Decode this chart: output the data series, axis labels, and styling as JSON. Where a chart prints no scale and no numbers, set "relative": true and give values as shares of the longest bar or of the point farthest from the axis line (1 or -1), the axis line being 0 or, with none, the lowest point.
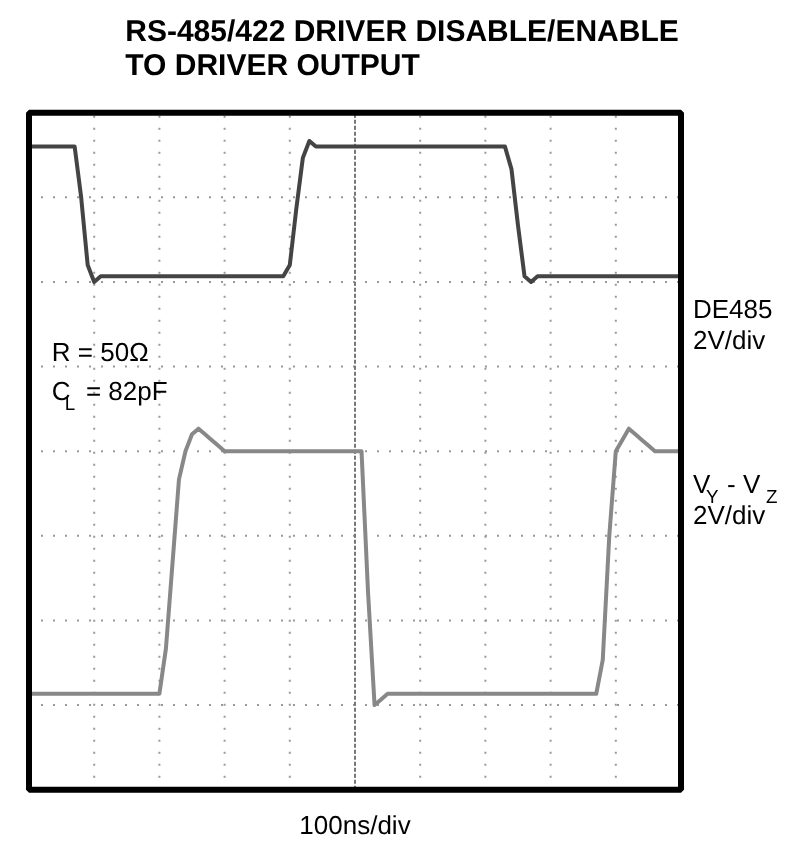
{
  "chart_data": {
    "type": "line",
    "title": "RS-485/422 DRIVER DISABLE/ENABLE\nTO DRIVER OUTPUT",
    "xlabel": "100ns/div",
    "relative": true,
    "grid": true,
    "tick_labels": false,
    "categories": [
      null,
      null,
      null,
      null,
      null,
      null,
      null,
      null,
      null,
      null,
      null,
      null,
      null,
      null,
      null,
      null,
      null,
      null,
      null,
      null,
      null,
      null,
      null,
      null,
      null,
      null,
      null,
      null,
      null,
      null,
      null,
      null,
      null,
      null,
      null,
      null,
      null,
      null,
      null,
      null,
      null,
      null,
      null,
      null,
      null,
      null,
      null,
      null,
      null,
      null,
      null,
      null,
      null,
      null,
      null,
      null,
      null,
      null,
      null,
      null,
      null,
      null,
      null,
      null,
      null,
      null,
      null,
      null,
      null,
      null,
      null,
      null,
      null,
      null,
      null,
      null,
      null,
      null,
      null,
      null,
      null,
      null,
      null,
      null,
      null,
      null,
      null,
      null,
      null,
      null,
      null,
      null,
      null,
      null,
      null,
      null,
      null,
      null,
      null,
      null,
      null
    ],
    "annotations": [
      "R = 50Ω",
      "C$_{L}$ = 82pF"
    ],
    "series": [
      {
        "name": "DE485\n2V/div",
        "color": "#444444",
        "values": [
          0.99,
          0.99,
          0.99,
          0.99,
          0.99,
          0.99,
          0.99,
          0.99,
          0.9,
          0.78,
          0.75,
          0.76,
          0.76,
          0.76,
          0.76,
          0.76,
          0.76,
          0.76,
          0.76,
          0.76,
          0.76,
          0.76,
          0.76,
          0.76,
          0.76,
          0.76,
          0.76,
          0.76,
          0.76,
          0.76,
          0.76,
          0.76,
          0.76,
          0.76,
          0.76,
          0.76,
          0.76,
          0.76,
          0.76,
          0.76,
          0.78,
          0.88,
          0.97,
          1,
          0.99,
          0.99,
          0.99,
          0.99,
          0.99,
          0.99,
          0.99,
          0.99,
          0.99,
          0.99,
          0.99,
          0.99,
          0.99,
          0.99,
          0.99,
          0.99,
          0.99,
          0.99,
          0.99,
          0.99,
          0.99,
          0.99,
          0.99,
          0.99,
          0.99,
          0.99,
          0.99,
          0.99,
          0.99,
          0.99,
          0.95,
          0.85,
          0.76,
          0.75,
          0.76,
          0.76,
          0.76,
          0.76,
          0.76,
          0.76,
          0.76,
          0.76,
          0.76,
          0.76,
          0.76,
          0.76,
          0.76,
          0.76,
          0.76,
          0.76,
          0.76,
          0.76,
          0.76,
          0.76,
          0.76,
          0.76,
          0.76
        ]
      },
      {
        "name": "V$_{Y}$ - V$_{Z}$\n2V/div",
        "color": "#888888",
        "values": [
          0.02,
          0.02,
          0.02,
          0.02,
          0.02,
          0.02,
          0.02,
          0.02,
          0.02,
          0.02,
          0.02,
          0.02,
          0.02,
          0.02,
          0.02,
          0.02,
          0.02,
          0.02,
          0.02,
          0.02,
          0.02,
          0.1,
          0.25,
          0.4,
          0.45,
          0.48,
          0.49,
          0.48,
          0.47,
          0.46,
          0.45,
          0.45,
          0.45,
          0.45,
          0.45,
          0.45,
          0.45,
          0.45,
          0.45,
          0.45,
          0.45,
          0.45,
          0.45,
          0.45,
          0.45,
          0.45,
          0.45,
          0.45,
          0.45,
          0.45,
          0.45,
          0.45,
          0.2,
          0,
          0.01,
          0.02,
          0.02,
          0.02,
          0.02,
          0.02,
          0.02,
          0.02,
          0.02,
          0.02,
          0.02,
          0.02,
          0.02,
          0.02,
          0.02,
          0.02,
          0.02,
          0.02,
          0.02,
          0.02,
          0.02,
          0.02,
          0.02,
          0.02,
          0.02,
          0.02,
          0.02,
          0.02,
          0.02,
          0.02,
          0.02,
          0.02,
          0.02,
          0.02,
          0.08,
          0.3,
          0.45,
          0.47,
          0.49,
          0.48,
          0.47,
          0.46,
          0.45,
          0.45,
          0.45,
          0.45,
          0.45
        ]
      }
    ]
  }
}
